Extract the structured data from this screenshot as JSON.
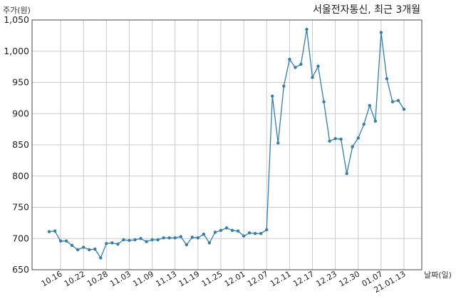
{
  "chart_data": {
    "type": "line",
    "title": "서울전자통신, 최근 3개월",
    "ylabel": "주가(원)",
    "xlabel": "날짜(일)",
    "ylim": [
      650,
      1050
    ],
    "y_ticks": [
      650,
      700,
      750,
      800,
      850,
      900,
      950,
      1000,
      1050
    ],
    "y_tick_labels": [
      "650",
      "700",
      "750",
      "800",
      "850",
      "900",
      "950",
      "1,000",
      "1,050"
    ],
    "x_tick_labels": [
      "10.16",
      "10.22",
      "10.28",
      "11.03",
      "11.09",
      "11.13",
      "11.19",
      "11.25",
      "12.01",
      "12.07",
      "12.11",
      "12.17",
      "12.23",
      "12.30",
      "01.07",
      "21.01.13"
    ],
    "x_tick_indices": [
      2,
      6,
      10,
      14,
      18,
      22,
      26,
      30,
      34,
      38,
      42,
      46,
      50,
      54,
      58,
      62
    ],
    "grid": true,
    "series": [
      {
        "color": "#2f7fb3",
        "values": [
          711,
          712,
          696,
          696,
          689,
          682,
          686,
          682,
          683,
          669,
          692,
          693,
          691,
          698,
          697,
          698,
          700,
          695,
          698,
          698,
          701,
          701,
          701,
          703,
          690,
          702,
          701,
          707,
          693,
          710,
          713,
          717,
          713,
          712,
          704,
          709,
          708,
          708,
          714,
          928,
          853,
          944,
          987,
          974,
          979,
          1035,
          958,
          976,
          919,
          856,
          860,
          859,
          804,
          847,
          861,
          883,
          913,
          888,
          1030,
          956,
          919,
          921,
          907
        ]
      }
    ]
  }
}
